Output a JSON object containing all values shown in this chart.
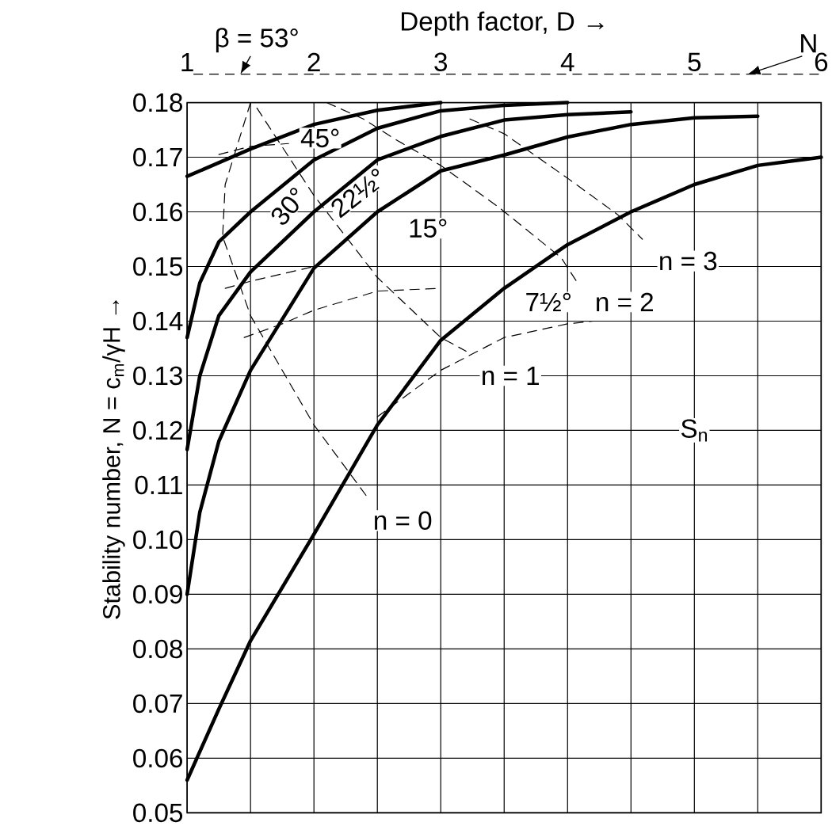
{
  "chart_data": {
    "type": "line",
    "xlabel": "Depth factor, D →",
    "ylabel": "Stability number, N = c$_{m}$/γH →",
    "xlim": [
      1,
      6
    ],
    "xticks": [
      1,
      {
        "value": 1.5,
        "label": null
      },
      2,
      {
        "value": 2.5,
        "label": null
      },
      3,
      {
        "value": 3.5,
        "label": null
      },
      4,
      {
        "value": 4.5,
        "label": null
      },
      5,
      {
        "value": 5.5,
        "label": null
      },
      6
    ],
    "ylim": [
      0.05,
      0.18
    ],
    "yticks": [
      {
        "value": 0.05,
        "label": "0.05"
      },
      {
        "value": 0.06,
        "label": "0.06"
      },
      {
        "value": 0.07,
        "label": "0.07"
      },
      {
        "value": 0.08,
        "label": "0.08"
      },
      {
        "value": 0.09,
        "label": "0.09"
      },
      {
        "value": 0.1,
        "label": "0.10"
      },
      {
        "value": 0.11,
        "label": "0.11"
      },
      {
        "value": 0.12,
        "label": "0.12"
      },
      {
        "value": 0.13,
        "label": "0.13"
      },
      {
        "value": 0.14,
        "label": "0.14"
      },
      {
        "value": 0.15,
        "label": "0.15"
      },
      {
        "value": 0.16,
        "label": "0.16"
      },
      {
        "value": 0.17,
        "label": "0.17"
      },
      {
        "value": 0.18,
        "label": "0.18"
      }
    ],
    "grid": true,
    "series": [
      {
        "color": "#000000",
        "line_style": "solid",
        "x": [
          1,
          1.5,
          2,
          2.5,
          3
        ],
        "values": [
          0.1665,
          0.1715,
          0.176,
          0.1786,
          0.18
        ]
      },
      {
        "color": "#000000",
        "line_style": "solid",
        "x": [
          1,
          1.1,
          1.25,
          1.5,
          2,
          2.5,
          3,
          3.5,
          4
        ],
        "values": [
          0.137,
          0.147,
          0.1545,
          0.16,
          0.1695,
          0.1753,
          0.1785,
          0.1795,
          0.18
        ]
      },
      {
        "color": "#000000",
        "line_style": "solid",
        "x": [
          1,
          1.1,
          1.25,
          1.5,
          2,
          2.5,
          3,
          3.5,
          4,
          4.5
        ],
        "values": [
          0.1165,
          0.13,
          0.141,
          0.149,
          0.16,
          0.1695,
          0.1738,
          0.1768,
          0.1778,
          0.1783
        ]
      },
      {
        "color": "#000000",
        "line_style": "solid",
        "x": [
          1,
          1.1,
          1.25,
          1.5,
          2,
          2.5,
          3,
          3.5,
          4,
          4.5,
          5,
          5.5
        ],
        "values": [
          0.09,
          0.105,
          0.118,
          0.131,
          0.1497,
          0.16,
          0.1675,
          0.1704,
          0.1737,
          0.176,
          0.1772,
          0.1775
        ]
      },
      {
        "color": "#000000",
        "line_style": "solid",
        "x": [
          1,
          1.25,
          1.5,
          2,
          2.5,
          3,
          3.5,
          4,
          4.5,
          5,
          5.5,
          6
        ],
        "values": [
          0.056,
          0.069,
          0.0815,
          0.101,
          0.121,
          0.1365,
          0.146,
          0.154,
          0.16,
          0.165,
          0.1685,
          0.17
        ]
      },
      {
        "color": "#000000",
        "line_style": "dashed",
        "x": [
          1.5,
          1.3,
          1.28,
          1.5,
          2,
          2.43
        ],
        "values": [
          0.18,
          0.165,
          0.1555,
          0.141,
          0.121,
          0.1075
        ]
      },
      {
        "color": "#000000",
        "line_style": "dashed",
        "x": [
          1.55,
          2,
          2.5,
          3,
          3.2
        ],
        "values": [
          0.179,
          0.163,
          0.148,
          0.137,
          0.1345
        ]
      },
      {
        "color": "#000000",
        "line_style": "dashed",
        "x": [
          2.1,
          2.39,
          2.64,
          3,
          3.46,
          3.95,
          4.07
        ],
        "values": [
          0.18,
          0.177,
          0.1733,
          0.1685,
          0.1608,
          0.1516,
          0.1473
        ]
      },
      {
        "color": "#000000",
        "line_style": "dashed",
        "x": [
          3.23,
          3.5,
          4.01,
          4.4,
          4.59
        ],
        "values": [
          0.177,
          0.1743,
          0.166,
          0.1594,
          0.155
        ]
      },
      {
        "color": "#000000",
        "line_style": "dashed",
        "x": [
          2.5,
          3,
          3.5,
          4,
          4.2
        ],
        "values": [
          0.1225,
          0.131,
          0.137,
          0.1395,
          0.14
        ]
      },
      {
        "color": "#000000",
        "line_style": "dashed",
        "x": [
          1.45,
          1.75,
          2,
          2.5,
          3
        ],
        "values": [
          0.137,
          0.1395,
          0.142,
          0.1455,
          0.146
        ]
      },
      {
        "color": "#000000",
        "line_style": "dashed",
        "x": [
          1.3,
          1.5,
          2
        ],
        "values": [
          0.146,
          0.1473,
          0.15
        ]
      },
      {
        "color": "#000000",
        "line_style": "dashed",
        "x": [
          1.25,
          1.5,
          1.8
        ],
        "values": [
          0.1705,
          0.172,
          0.1725
        ]
      }
    ],
    "annotations": [
      "β = 53°",
      "N",
      "45°",
      "30°",
      "22½°",
      "15°",
      "7½°",
      "n = 0",
      "n = 1",
      "n = 2",
      "n = 3",
      "S$_{n}$"
    ]
  }
}
